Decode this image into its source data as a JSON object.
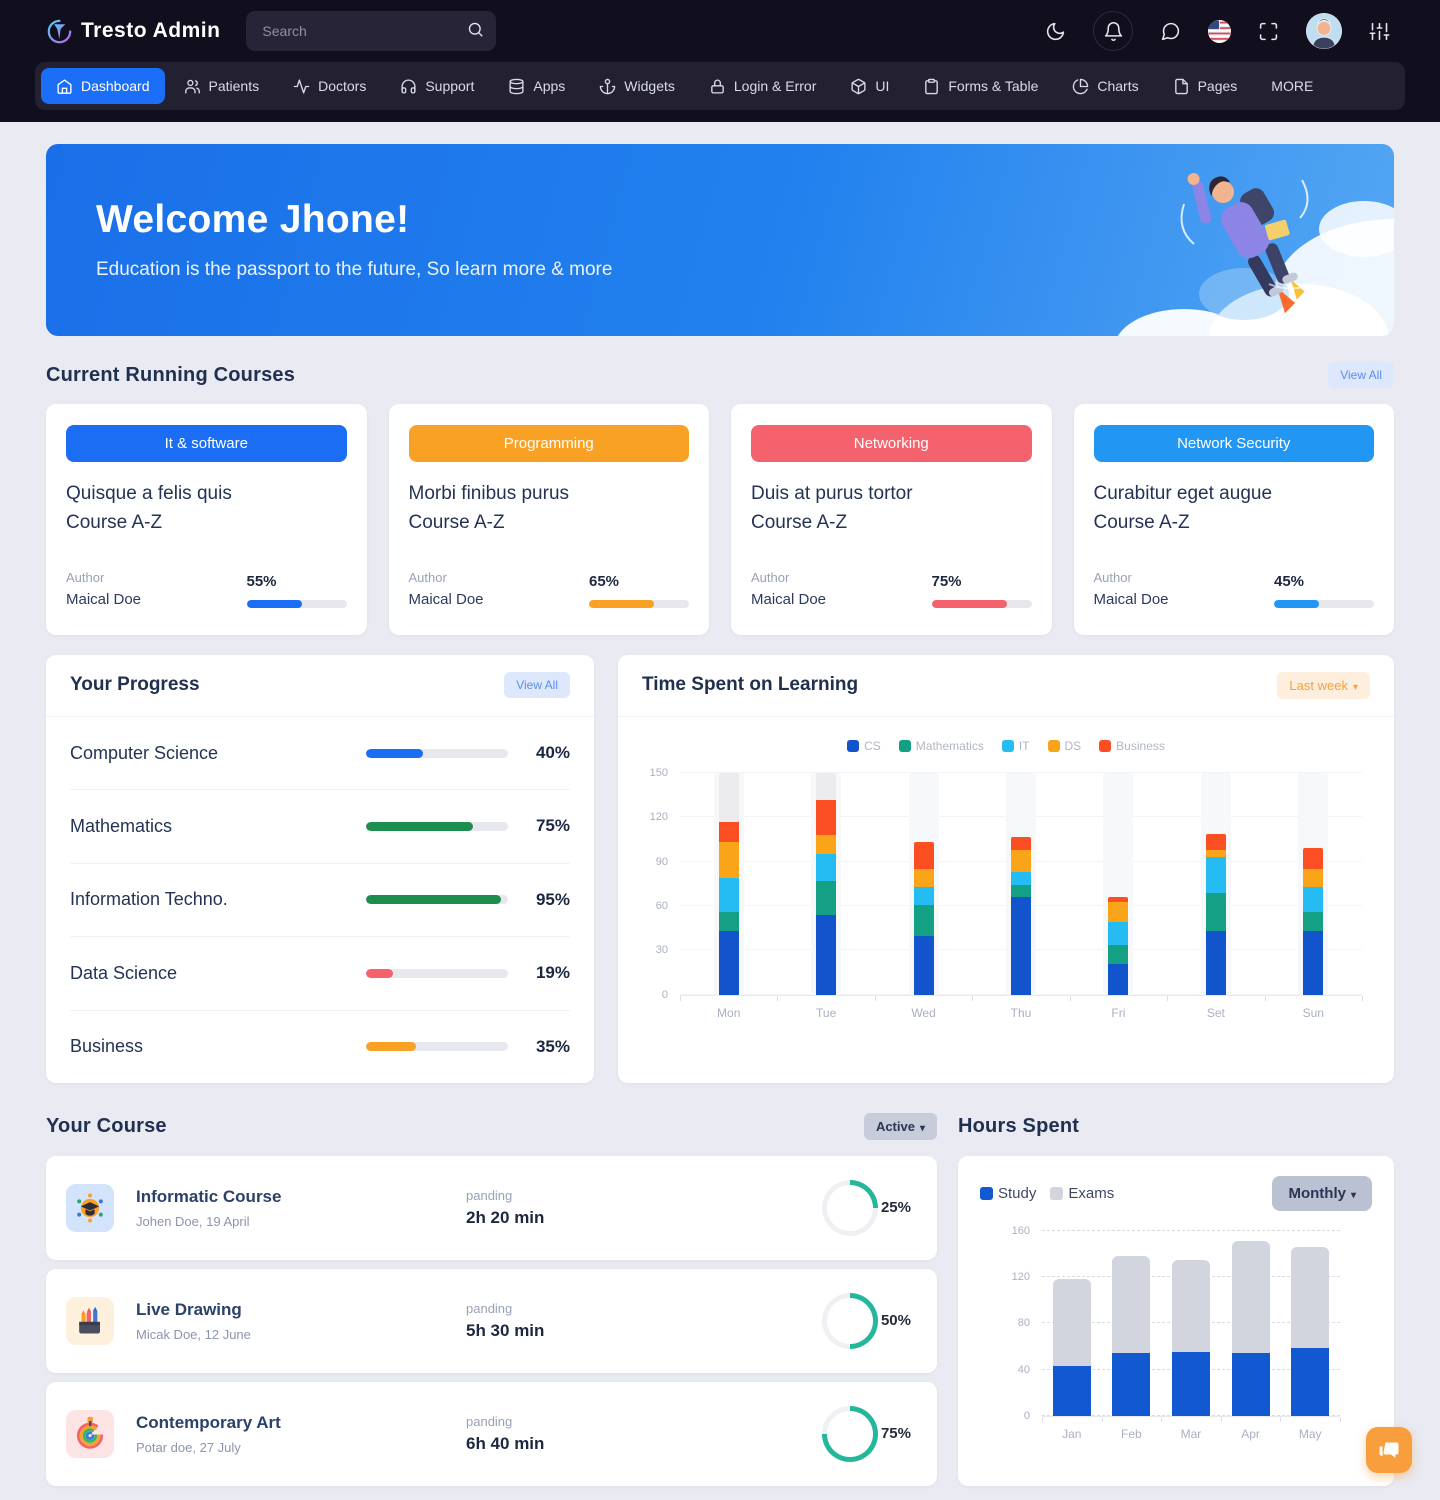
{
  "brand": {
    "name": "Tresto Admin"
  },
  "search": {
    "placeholder": "Search"
  },
  "topbar": {
    "actions": [
      "dark-mode-icon",
      "notifications-icon",
      "messages-icon",
      "language-flag-icon",
      "fullscreen-icon",
      "avatar",
      "settings-sliders-icon"
    ]
  },
  "nav": {
    "items": [
      {
        "label": "Dashboard",
        "icon": "home",
        "active": true
      },
      {
        "label": "Patients",
        "icon": "users",
        "active": false
      },
      {
        "label": "Doctors",
        "icon": "activity",
        "active": false
      },
      {
        "label": "Support",
        "icon": "headphones",
        "active": false
      },
      {
        "label": "Apps",
        "icon": "database",
        "active": false
      },
      {
        "label": "Widgets",
        "icon": "anchor",
        "active": false
      },
      {
        "label": "Login & Error",
        "icon": "lock",
        "active": false
      },
      {
        "label": "UI",
        "icon": "box",
        "active": false
      },
      {
        "label": "Forms & Table",
        "icon": "clipboard",
        "active": false
      },
      {
        "label": "Charts",
        "icon": "pie-chart",
        "active": false
      },
      {
        "label": "Pages",
        "icon": "file",
        "active": false
      },
      {
        "label": "MORE",
        "icon": null,
        "active": false
      }
    ]
  },
  "banner": {
    "title": "Welcome Jhone!",
    "subtitle": "Education is the passport to the future, So learn more & more"
  },
  "courses_section": {
    "title": "Current Running Courses",
    "view_all": "View All",
    "cards": [
      {
        "category": "It & software",
        "color": "#1b6ef3",
        "title": "Quisque a felis quis\nCourse A-Z",
        "author_label": "Author",
        "author": "Maical Doe",
        "percent": "55%",
        "pct": 55
      },
      {
        "category": "Programming",
        "color": "#f9a125",
        "title": "Morbi finibus purus\nCourse A-Z",
        "author_label": "Author",
        "author": "Maical Doe",
        "percent": "65%",
        "pct": 65
      },
      {
        "category": "Networking",
        "color": "#f4636d",
        "title": "Duis at purus tortor\nCourse A-Z",
        "author_label": "Author",
        "author": "Maical Doe",
        "percent": "75%",
        "pct": 75
      },
      {
        "category": "Network Security",
        "color": "#2196f3",
        "title": "Curabitur eget augue\nCourse A-Z",
        "author_label": "Author",
        "author": "Maical Doe",
        "percent": "45%",
        "pct": 45
      }
    ]
  },
  "progress": {
    "title": "Your Progress",
    "view_all": "View All",
    "rows": [
      {
        "label": "Computer Science",
        "percent": "40%",
        "pct": 40,
        "color": "#1b6ef3"
      },
      {
        "label": "Mathematics",
        "percent": "75%",
        "pct": 75,
        "color": "#1e8e50"
      },
      {
        "label": "Information Techno.",
        "percent": "95%",
        "pct": 95,
        "color": "#1e8e50"
      },
      {
        "label": "Data Science",
        "percent": "19%",
        "pct": 19,
        "color": "#f4636d"
      },
      {
        "label": "Business",
        "percent": "35%",
        "pct": 35,
        "color": "#f9a125"
      }
    ]
  },
  "chart_data": [
    {
      "type": "bar",
      "stacked": true,
      "title": "Time Spent on Learning",
      "period_label": "Last week",
      "categories": [
        "Mon",
        "Tue",
        "Wed",
        "Thu",
        "Fri",
        "Set",
        "Sun"
      ],
      "series": [
        {
          "name": "CS",
          "color": "#1254cc",
          "values": [
            43,
            54,
            40,
            66,
            21,
            43,
            43
          ]
        },
        {
          "name": "Mathematics",
          "color": "#14a085",
          "values": [
            13,
            23,
            21,
            8,
            13,
            26,
            13
          ]
        },
        {
          "name": "IT",
          "color": "#24bcf3",
          "values": [
            23,
            18,
            12,
            9,
            15,
            24,
            17
          ]
        },
        {
          "name": "DS",
          "color": "#faa41a",
          "values": [
            24,
            13,
            12,
            15,
            14,
            5,
            12
          ]
        },
        {
          "name": "Business",
          "color": "#fb4f23",
          "values": [
            14,
            24,
            18,
            9,
            3,
            11,
            14
          ]
        }
      ],
      "gray_caps": {
        "color": "#ececef",
        "values": [
          33,
          18,
          0,
          0,
          0,
          0,
          0
        ]
      },
      "ylim": [
        0,
        150
      ],
      "yticks": [
        0,
        30,
        60,
        90,
        120,
        150
      ],
      "legend_position": "top-center",
      "grid": "solid"
    },
    {
      "type": "bar",
      "stacked": true,
      "title": "Hours Spent",
      "period_label": "Monthly",
      "categories": [
        "Jan",
        "Feb",
        "Mar",
        "Apr",
        "May"
      ],
      "series": [
        {
          "name": "Study",
          "color": "#1158d1",
          "values": [
            43,
            54,
            55,
            54,
            59
          ]
        },
        {
          "name": "Exams",
          "color": "#d2d4de",
          "values": [
            75,
            84,
            80,
            97,
            87
          ]
        }
      ],
      "ylim": [
        0,
        160
      ],
      "yticks": [
        0,
        40,
        80,
        120,
        160
      ],
      "legend_position": "top-left",
      "grid": "dashed"
    }
  ],
  "your_course": {
    "title": "Your Course",
    "filter_label": "Active",
    "rows": [
      {
        "title": "Informatic Course",
        "subtitle": "Johen Doe, 19 April",
        "status_label": "panding",
        "duration": "2h 20 min",
        "percent": "25%",
        "pct": 25,
        "icon": "graduation-cap",
        "icon_bg": "#d3e3fb"
      },
      {
        "title": "Live Drawing",
        "subtitle": "Micak Doe, 12 June",
        "status_label": "panding",
        "duration": "5h 30 min",
        "percent": "50%",
        "pct": 50,
        "icon": "pencil-cup",
        "icon_bg": "#fdf0dc"
      },
      {
        "title": "Contemporary Art",
        "subtitle": "Potar doe, 27 July",
        "status_label": "panding",
        "duration": "6h 40 min",
        "percent": "75%",
        "pct": 75,
        "icon": "rainbow-swirl",
        "icon_bg": "#fde4e4"
      }
    ]
  },
  "hours_spent_section": {
    "title": "Hours Spent"
  },
  "colors": {
    "accent_blue": "#1b6ef3",
    "ring": "#25b79b",
    "ring_track": "#eef0f4",
    "banner_blue": "#1a6fe8",
    "header_bg": "#110f1d",
    "nav_strip_bg": "#232032",
    "page_bg": "#e9eaf2",
    "fab_orange": "#f99e3d"
  }
}
